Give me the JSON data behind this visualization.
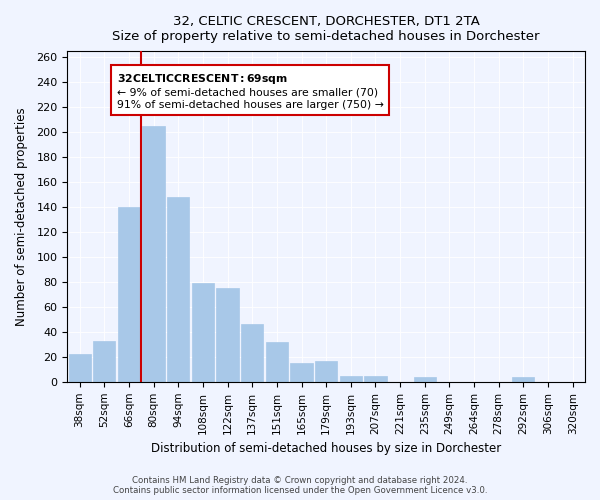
{
  "title": "32, CELTIC CRESCENT, DORCHESTER, DT1 2TA",
  "subtitle": "Size of property relative to semi-detached houses in Dorchester",
  "xlabel": "Distribution of semi-detached houses by size in Dorchester",
  "ylabel": "Number of semi-detached properties",
  "bar_color": "#a8c8e8",
  "bar_edge_color": "#a8c8e8",
  "categories": [
    "38sqm",
    "52sqm",
    "66sqm",
    "80sqm",
    "94sqm",
    "108sqm",
    "122sqm",
    "137sqm",
    "151sqm",
    "165sqm",
    "179sqm",
    "193sqm",
    "207sqm",
    "221sqm",
    "235sqm",
    "249sqm",
    "264sqm",
    "278sqm",
    "292sqm",
    "306sqm",
    "320sqm"
  ],
  "values": [
    22,
    33,
    140,
    205,
    148,
    79,
    75,
    46,
    32,
    15,
    17,
    5,
    5,
    0,
    4,
    0,
    0,
    0,
    4,
    0,
    0
  ],
  "vline_x": 2,
  "vline_color": "#cc0000",
  "annotation_title": "32 CELTIC CRESCENT: 69sqm",
  "annotation_line1": "← 9% of semi-detached houses are smaller (70)",
  "annotation_line2": "91% of semi-detached houses are larger (750) →",
  "annotation_box_color": "#ffffff",
  "annotation_box_edge": "#cc0000",
  "footer1": "Contains HM Land Registry data © Crown copyright and database right 2024.",
  "footer2": "Contains public sector information licensed under the Open Government Licence v3.0.",
  "ylim": [
    0,
    265
  ],
  "background_color": "#f0f4ff"
}
